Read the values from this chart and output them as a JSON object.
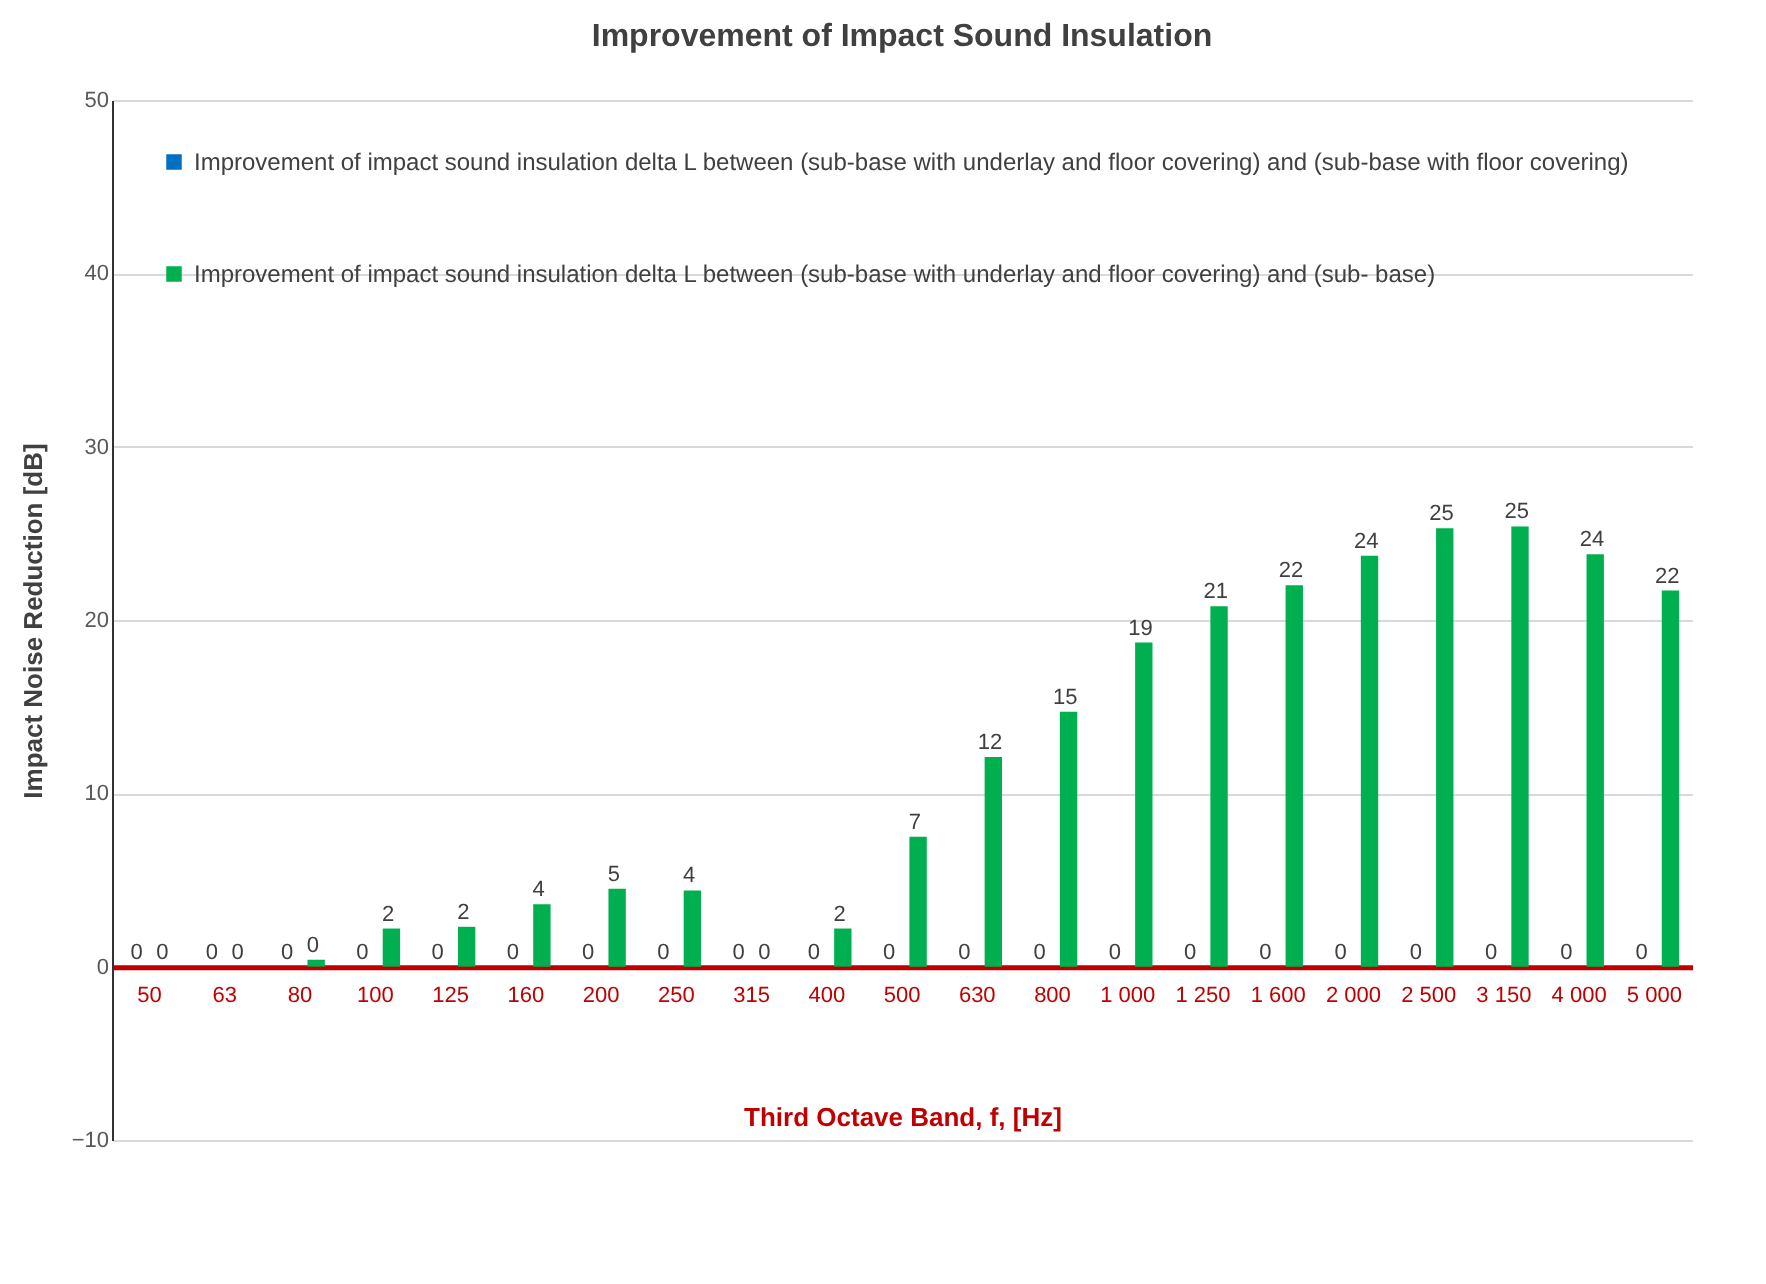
{
  "chart_data": {
    "type": "bar",
    "title": "Improvement of Impact Sound Insulation",
    "xlabel": "Third Octave Band, f, [Hz]",
    "ylabel": "Impact Noise Reduction [dB]",
    "categories": [
      "50",
      "63",
      "80",
      "100",
      "125",
      "160",
      "200",
      "250",
      "315",
      "400",
      "500",
      "630",
      "800",
      "1 000",
      "1 250",
      "1 600",
      "2 000",
      "2 500",
      "3 150",
      "4 000",
      "5 000"
    ],
    "series": [
      {
        "name": "Improvement of impact sound insulation delta L between (sub-base with underlay and floor covering) and (sub-base with floor covering)",
        "color": "#0070c0",
        "values": [
          0,
          0,
          0,
          0,
          0,
          0,
          0,
          0,
          0,
          0,
          0,
          0,
          0,
          0,
          0,
          0,
          0,
          0,
          0,
          0,
          0
        ],
        "value_labels": [
          "0",
          "0",
          "0",
          "0",
          "0",
          "0",
          "0",
          "0",
          "0",
          "0",
          "0",
          "0",
          "0",
          "0",
          "0",
          "0",
          "0",
          "0",
          "0",
          "0",
          "0"
        ]
      },
      {
        "name": "Improvement of impact sound insulation delta L between (sub-base with underlay and floor covering) and (sub- base)",
        "color": "#00b050",
        "values": [
          0,
          0,
          0.4,
          2.2,
          2.3,
          3.6,
          4.5,
          4.4,
          0,
          2.2,
          7.5,
          12.1,
          14.7,
          18.7,
          20.8,
          22.0,
          23.7,
          25.3,
          25.4,
          23.8,
          21.7
        ],
        "value_labels": [
          "0",
          "0",
          "0",
          "2",
          "2",
          "4",
          "5",
          "4",
          "0",
          "2",
          "7",
          "12",
          "15",
          "19",
          "21",
          "22",
          "24",
          "25",
          "25",
          "24",
          "22"
        ]
      }
    ],
    "ylim": [
      -10,
      50
    ],
    "yticks": [
      -10,
      0,
      10,
      20,
      30,
      40,
      50
    ],
    "grid": "y",
    "legend": "top left"
  }
}
